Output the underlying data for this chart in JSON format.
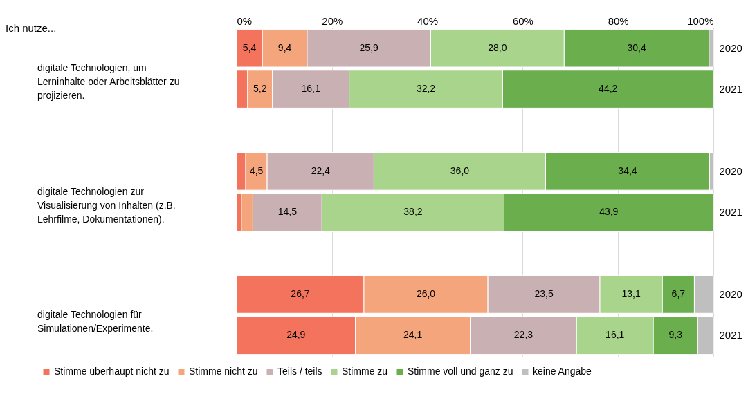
{
  "chart_data": {
    "type": "bar",
    "orientation": "horizontal",
    "stacked": true,
    "categories": [
      "2020",
      "2021",
      "2020",
      "2021",
      "2020",
      "2021"
    ],
    "annotations": [
      "Ich nutze...",
      "digitale Technologien, um Lerninhalte oder Arbeitsblätter zu projizieren.",
      "digitale Technologien zur Visualisierung von Inhalten (z.B. Lehrfilme, Dokumentationen).",
      "digitale Technologien für Simulationen/Experimente."
    ],
    "series": [
      {
        "name": "Stimme überhaupt nicht zu",
        "color": "#f4735d",
        "values": [
          5.4,
          2.3,
          1.9,
          1.0,
          26.7,
          24.9
        ],
        "value_labels": [
          "5,4",
          null,
          null,
          null,
          "26,7",
          "24,9"
        ]
      },
      {
        "name": "Stimme nicht zu",
        "color": "#f4a57c",
        "values": [
          9.4,
          5.2,
          4.5,
          2.4,
          26.0,
          24.1
        ],
        "value_labels": [
          "9,4",
          "5,2",
          "4,5",
          null,
          "26,0",
          "24,1"
        ]
      },
      {
        "name": "Teils / teils",
        "color": "#c9b0b3",
        "values": [
          25.9,
          16.1,
          22.4,
          14.5,
          23.5,
          22.3
        ],
        "value_labels": [
          "25,9",
          "16,1",
          "22,4",
          "14,5",
          "23,5",
          "22,3"
        ]
      },
      {
        "name": "Stimme zu",
        "color": "#a8d48b",
        "values": [
          28.0,
          32.2,
          36.0,
          38.2,
          13.1,
          16.1
        ],
        "value_labels": [
          "28,0",
          "32,2",
          "36,0",
          "38,2",
          "13,1",
          "16,1"
        ]
      },
      {
        "name": "Stimme voll und ganz zu",
        "color": "#6aae4d",
        "values": [
          30.4,
          44.2,
          34.4,
          43.9,
          6.7,
          9.3
        ],
        "value_labels": [
          "30,4",
          "44,2",
          "34,4",
          "43,9",
          "6,7",
          "9,3"
        ]
      },
      {
        "name": "keine Angabe",
        "color": "#bfbfbf",
        "values": [
          0.9,
          null,
          0.8,
          null,
          4.0,
          3.3
        ],
        "value_labels": [
          null,
          null,
          null,
          null,
          null,
          null
        ]
      }
    ],
    "xlim": [
      0,
      100
    ],
    "xticks": [
      {
        "value": 0,
        "label": "0%"
      },
      {
        "value": 20,
        "label": "20%"
      },
      {
        "value": 40,
        "label": "40%"
      },
      {
        "value": 60,
        "label": "60%"
      },
      {
        "value": 80,
        "label": "80%"
      },
      {
        "value": 100,
        "label": "100%"
      }
    ],
    "grid": "x",
    "legend": "bottom"
  }
}
